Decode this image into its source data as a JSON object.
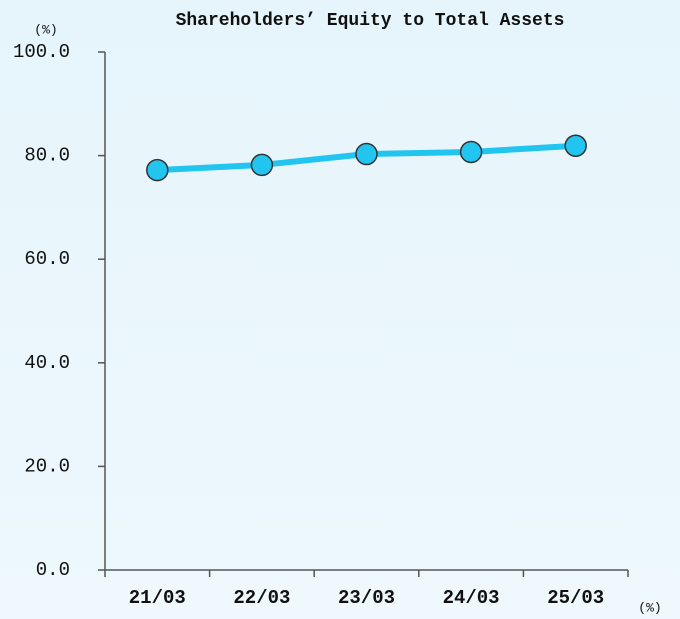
{
  "chart_data": {
    "type": "line",
    "title": "Shareholders’ Equity to Total Assets",
    "y_unit_label": "(%)",
    "x_unit_label": "(%)",
    "categories": [
      "21/03",
      "22/03",
      "23/03",
      "24/03",
      "25/03"
    ],
    "series": [
      {
        "name": "Shareholders’ Equity to Total Assets",
        "color": "#22c4f0",
        "values": [
          77.2,
          78.2,
          80.3,
          80.7,
          81.9
        ]
      }
    ],
    "ylim": [
      0,
      100
    ],
    "yticks": [
      {
        "value": 0,
        "label": "0.0"
      },
      {
        "value": 20,
        "label": "20.0"
      },
      {
        "value": 40,
        "label": "40.0"
      },
      {
        "value": 60,
        "label": "60.0"
      },
      {
        "value": 80,
        "label": "80.0"
      },
      {
        "value": 100,
        "label": "100.0"
      }
    ],
    "grid": false
  }
}
